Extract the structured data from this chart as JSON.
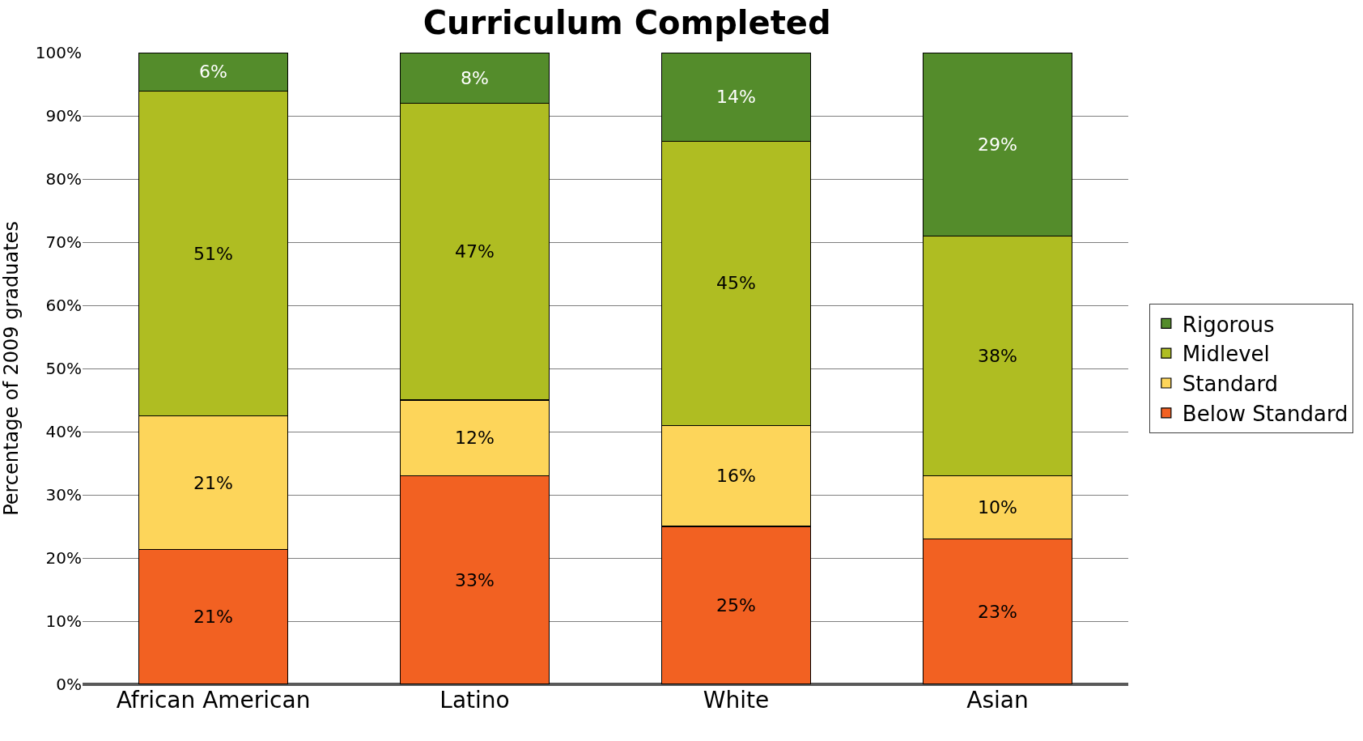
{
  "chart_data": {
    "type": "bar",
    "title": "Curriculum Completed",
    "ylabel": "Percentage of 2009 graduates",
    "stacked": true,
    "categories": [
      "African American",
      "Latino",
      "White",
      "Asian"
    ],
    "series": [
      {
        "name": "Below Standard",
        "color": "#f26122",
        "values": [
          21.3,
          33,
          25,
          23
        ],
        "value_labels": [
          "21%",
          "33%",
          "25%",
          "23%"
        ]
      },
      {
        "name": "Standard",
        "color": "#fdd55a",
        "values": [
          21.2,
          12,
          16,
          10
        ],
        "value_labels": [
          "21%",
          "12%",
          "16%",
          "10%"
        ]
      },
      {
        "name": "Midlevel",
        "color": "#afbd22",
        "values": [
          51.4,
          47,
          45,
          38
        ],
        "value_labels": [
          "51%",
          "47%",
          "45%",
          "38%"
        ]
      },
      {
        "name": "Rigorous",
        "color": "#548c2b",
        "values": [
          6.1,
          8,
          14,
          29
        ],
        "value_labels": [
          "6%",
          "8%",
          "14%",
          "29%"
        ]
      }
    ],
    "ylim": [
      0,
      100
    ],
    "yticks": [
      {
        "value": 0,
        "label": "0%"
      },
      {
        "value": 10,
        "label": "10%"
      },
      {
        "value": 20,
        "label": "20%"
      },
      {
        "value": 30,
        "label": "30%"
      },
      {
        "value": 40,
        "label": "40%"
      },
      {
        "value": 50,
        "label": "50%"
      },
      {
        "value": 60,
        "label": "60%"
      },
      {
        "value": 70,
        "label": "70%"
      },
      {
        "value": 80,
        "label": "80%"
      },
      {
        "value": 90,
        "label": "90%"
      },
      {
        "value": 100,
        "label": "100%"
      }
    ],
    "grid": "y",
    "legend": "right"
  }
}
